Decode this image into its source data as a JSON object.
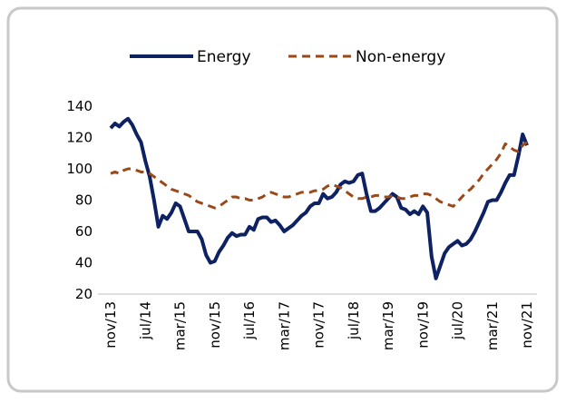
{
  "chart_data": {
    "type": "line",
    "categories": [
      "nov/13",
      null,
      null,
      null,
      null,
      null,
      null,
      null,
      "jul/14",
      null,
      null,
      null,
      null,
      null,
      null,
      null,
      "mar/15",
      null,
      null,
      null,
      null,
      null,
      null,
      null,
      "nov/15",
      null,
      null,
      null,
      null,
      null,
      null,
      null,
      "jul/16",
      null,
      null,
      null,
      null,
      null,
      null,
      null,
      "mar/17",
      null,
      null,
      null,
      null,
      null,
      null,
      null,
      "nov/17",
      null,
      null,
      null,
      null,
      null,
      null,
      null,
      "jul/18",
      null,
      null,
      null,
      null,
      null,
      null,
      null,
      "mar/19",
      null,
      null,
      null,
      null,
      null,
      null,
      null,
      "nov/19",
      null,
      null,
      null,
      null,
      null,
      null,
      null,
      "jul/20",
      null,
      null,
      null,
      null,
      null,
      null,
      null,
      "mar/21",
      null,
      null,
      null,
      null,
      null,
      null,
      null,
      "nov/21"
    ],
    "series": [
      {
        "name": "Energy",
        "color": "#0d2163",
        "dash": false,
        "values": [
          126,
          129,
          127,
          130,
          132,
          128,
          122,
          117,
          105,
          95,
          80,
          63,
          70,
          68,
          72,
          78,
          76,
          68,
          60,
          60,
          60,
          55,
          45,
          40,
          41,
          47,
          51,
          56,
          59,
          57,
          58,
          58,
          63,
          61,
          68,
          69,
          69,
          66,
          67,
          64,
          60,
          62,
          64,
          67,
          70,
          72,
          76,
          78,
          78,
          84,
          81,
          82,
          85,
          90,
          92,
          91,
          92,
          96,
          97,
          84,
          73,
          73,
          75,
          78,
          81,
          84,
          82,
          75,
          74,
          71,
          73,
          71,
          76,
          72,
          44,
          30,
          38,
          46,
          50,
          52,
          54,
          51,
          52,
          55,
          60,
          66,
          72,
          79,
          80,
          80,
          85,
          91,
          96,
          96,
          108,
          122,
          115
        ]
      },
      {
        "name": "Non-energy",
        "color": "#9a4a1a",
        "dash": true,
        "values": [
          97,
          98,
          97,
          99,
          100,
          100,
          99,
          98,
          98,
          97,
          95,
          93,
          91,
          89,
          87,
          86,
          85,
          84,
          83,
          81,
          79,
          78,
          77,
          76,
          75,
          76,
          78,
          80,
          82,
          82,
          81,
          81,
          80,
          80,
          81,
          82,
          84,
          85,
          84,
          83,
          82,
          82,
          83,
          84,
          85,
          85,
          85,
          86,
          86,
          87,
          89,
          90,
          89,
          88,
          86,
          84,
          82,
          81,
          81,
          82,
          82,
          83,
          83,
          82,
          82,
          83,
          82,
          81,
          81,
          82,
          83,
          83,
          84,
          84,
          83,
          81,
          79,
          78,
          77,
          76,
          79,
          82,
          85,
          87,
          90,
          93,
          97,
          100,
          103,
          106,
          110,
          116,
          114,
          112,
          111,
          115,
          117
        ]
      }
    ],
    "ylim": [
      20,
      140
    ],
    "yticks": [
      20,
      40,
      60,
      80,
      100,
      120,
      140
    ]
  }
}
